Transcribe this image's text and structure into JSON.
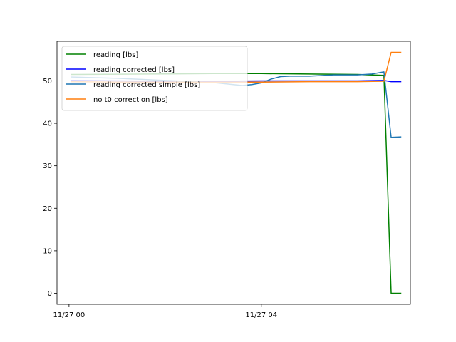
{
  "chart_data": {
    "type": "line",
    "x_unit": "hour on 11/27",
    "xlim": [
      -0.25,
      7.1
    ],
    "ylim": [
      -2.6,
      59.3
    ],
    "xticks": [
      {
        "value": 0,
        "label": "11/27 00"
      },
      {
        "value": 4,
        "label": "11/27 04"
      }
    ],
    "yticks": [
      {
        "value": 0,
        "label": "0"
      },
      {
        "value": 10,
        "label": "10"
      },
      {
        "value": 20,
        "label": "20"
      },
      {
        "value": 30,
        "label": "30"
      },
      {
        "value": 40,
        "label": "40"
      },
      {
        "value": 50,
        "label": "50"
      }
    ],
    "grid": false,
    "legend_position": "top-left",
    "series": [
      {
        "name": "reading [lbs]",
        "color": "#008000",
        "x": [
          0.05,
          3.0,
          4.0,
          5.0,
          6.0,
          6.55,
          6.7,
          6.9
        ],
        "y": [
          51.5,
          51.7,
          51.7,
          51.6,
          51.5,
          51.3,
          0.0,
          0.0
        ]
      },
      {
        "name": "reading corrected [lbs]",
        "color": "#0000ff",
        "x": [
          0.05,
          1.0,
          2.0,
          3.0,
          4.0,
          5.0,
          6.0,
          6.55,
          6.7,
          6.9
        ],
        "y": [
          50.1,
          50.0,
          49.9,
          49.9,
          50.0,
          50.0,
          50.0,
          50.1,
          49.8,
          49.8
        ]
      },
      {
        "name": "reading corrected simple [lbs]",
        "color": "#1f77b4",
        "x": [
          0.05,
          1.0,
          2.0,
          3.0,
          3.6,
          3.8,
          4.0,
          4.2,
          4.4,
          4.6,
          5.0,
          5.5,
          6.0,
          6.3,
          6.55,
          6.7,
          6.9
        ],
        "y": [
          50.9,
          50.6,
          50.1,
          49.6,
          48.9,
          49.1,
          49.5,
          50.4,
          51.0,
          51.1,
          51.1,
          51.4,
          51.4,
          51.6,
          52.1,
          36.7,
          36.8
        ],
        "note_series_color_alt": "#ff7f0e"
      },
      {
        "name": "no t0 correction [lbs]",
        "color": "#ff7f0e",
        "x": [
          0.05,
          1.0,
          2.0,
          3.0,
          4.0,
          5.0,
          6.0,
          6.55,
          6.7,
          6.9
        ],
        "y": [
          49.8,
          49.7,
          49.7,
          49.7,
          49.7,
          49.8,
          49.8,
          49.9,
          56.7,
          56.7
        ]
      }
    ]
  }
}
